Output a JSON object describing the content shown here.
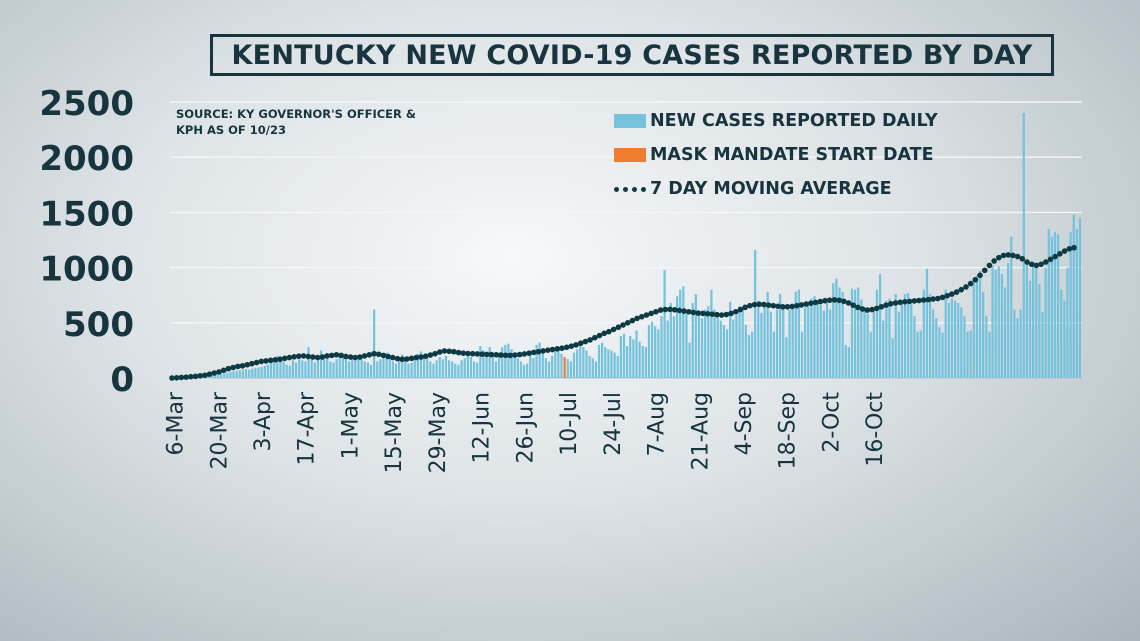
{
  "title": "KENTUCKY NEW COVID-19 CASES REPORTED BY DAY",
  "source_note": "SOURCE: KY GOVERNOR'S OFFICER & KPH AS OF 10/23",
  "colors": {
    "bars": "#74c2dc",
    "mask_bar": "#ee7d2f",
    "avg_dots": "#0e3a44",
    "text": "#17343f",
    "grid": "#f4f6f7"
  },
  "legend": {
    "daily": "NEW CASES REPORTED DAILY",
    "mask": "MASK MANDATE START DATE",
    "avg": "7 DAY MOVING AVERAGE"
  },
  "chart_data": {
    "type": "bar",
    "title": "KENTUCKY NEW COVID-19 CASES REPORTED BY DAY",
    "xlabel": "",
    "ylabel": "",
    "ylim": [
      0,
      2500
    ],
    "yticks": [
      0,
      500,
      1000,
      1500,
      2000,
      2500
    ],
    "x_tick_labels": [
      "6-Mar",
      "20-Mar",
      "3-Apr",
      "17-Apr",
      "1-May",
      "15-May",
      "29-May",
      "12-Jun",
      "26-Jun",
      "10-Jul",
      "24-Jul",
      "7-Aug",
      "21-Aug",
      "4-Sep",
      "18-Sep",
      "2-Oct",
      "16-Oct"
    ],
    "x_start": "6-Mar",
    "x_end": "23-Oct",
    "grid": true,
    "legend_position": "top-right",
    "mask_mandate_date": "10-Jul",
    "series": [
      {
        "name": "NEW CASES REPORTED DAILY",
        "type": "bar",
        "values": [
          1,
          1,
          2,
          2,
          3,
          4,
          6,
          8,
          10,
          12,
          14,
          17,
          21,
          24,
          28,
          32,
          36,
          42,
          48,
          55,
          60,
          65,
          70,
          75,
          80,
          75,
          85,
          90,
          95,
          100,
          110,
          120,
          150,
          170,
          200,
          180,
          150,
          120,
          110,
          160,
          140,
          170,
          160,
          150,
          280,
          190,
          140,
          160,
          250,
          170,
          180,
          150,
          140,
          170,
          200,
          220,
          170,
          150,
          180,
          160,
          210,
          170,
          150,
          140,
          120,
          620,
          150,
          170,
          200,
          230,
          200,
          150,
          130,
          170,
          210,
          160,
          130,
          140,
          180,
          220,
          240,
          200,
          180,
          150,
          130,
          160,
          190,
          170,
          200,
          160,
          150,
          130,
          120,
          160,
          180,
          200,
          190,
          150,
          140,
          290,
          250,
          200,
          280,
          210,
          150,
          230,
          280,
          300,
          310,
          260,
          200,
          180,
          150,
          120,
          130,
          220,
          180,
          300,
          320,
          260,
          180,
          150,
          200,
          240,
          260,
          220,
          190,
          170,
          150,
          230,
          260,
          310,
          280,
          250,
          200,
          180,
          150,
          300,
          320,
          280,
          260,
          250,
          230,
          200,
          380,
          400,
          290,
          380,
          350,
          430,
          330,
          290,
          280,
          480,
          510,
          470,
          440,
          560,
          980,
          520,
          680,
          560,
          740,
          800,
          830,
          580,
          320,
          680,
          760,
          600,
          540,
          620,
          650,
          800,
          620,
          570,
          520,
          480,
          440,
          690,
          530,
          570,
          650,
          640,
          480,
          390,
          420,
          1160,
          700,
          590,
          690,
          780,
          600,
          420,
          620,
          760,
          660,
          370,
          620,
          660,
          780,
          800,
          420,
          640,
          670,
          720,
          740,
          700,
          660,
          610,
          680,
          620,
          860,
          900,
          820,
          780,
          300,
          280,
          810,
          800,
          820,
          710,
          620,
          580,
          420,
          640,
          800,
          940,
          520,
          700,
          720,
          360,
          760,
          600,
          670,
          760,
          770,
          670,
          560,
          420,
          430,
          800,
          990,
          760,
          620,
          540,
          460,
          410,
          800,
          680,
          720,
          700,
          680,
          640,
          560,
          420,
          430,
          900,
          930,
          970,
          780,
          560,
          420,
          1020,
          980,
          1010,
          940,
          820,
          1040,
          1280,
          620,
          540,
          620,
          2400,
          1060,
          880,
          1050,
          1020,
          850,
          600,
          1000,
          1350,
          1280,
          1320,
          1300,
          800,
          700,
          1000,
          1320,
          1480,
          1350,
          1450
        ]
      },
      {
        "name": "7 DAY MOVING AVERAGE",
        "type": "line",
        "values": [
          0,
          2,
          5,
          8,
          12,
          15,
          20,
          25,
          35,
          45,
          55,
          70,
          85,
          95,
          105,
          110,
          120,
          130,
          140,
          150,
          155,
          160,
          165,
          170,
          178,
          185,
          192,
          198,
          200,
          195,
          190,
          185,
          190,
          200,
          205,
          210,
          205,
          195,
          190,
          185,
          190,
          200,
          210,
          220,
          215,
          205,
          195,
          185,
          175,
          170,
          172,
          178,
          185,
          190,
          198,
          208,
          220,
          235,
          245,
          242,
          238,
          230,
          225,
          222,
          220,
          218,
          216,
          214,
          212,
          210,
          208,
          206,
          205,
          208,
          212,
          218,
          225,
          232,
          238,
          245,
          252,
          258,
          264,
          270,
          278,
          288,
          300,
          315,
          330,
          345,
          365,
          385,
          405,
          420,
          440,
          460,
          480,
          500,
          520,
          540,
          555,
          570,
          585,
          600,
          615,
          620,
          622,
          618,
          612,
          606,
          600,
          594,
          588,
          585,
          582,
          578,
          574,
          570,
          575,
          585,
          600,
          620,
          640,
          655,
          665,
          668,
          665,
          660,
          655,
          650,
          645,
          645,
          648,
          655,
          662,
          670,
          678,
          685,
          692,
          700,
          705,
          708,
          704,
          695,
          680,
          660,
          640,
          625,
          615,
          620,
          630,
          645,
          660,
          672,
          680,
          686,
          690,
          694,
          698,
          702,
          706,
          710,
          715,
          720,
          730,
          745,
          760,
          778,
          800,
          825,
          855,
          890,
          930,
          975,
          1020,
          1060,
          1090,
          1110,
          1115,
          1110,
          1100,
          1080,
          1050,
          1030,
          1020,
          1030,
          1050,
          1075,
          1100,
          1125,
          1150,
          1170,
          1180
        ]
      }
    ]
  }
}
